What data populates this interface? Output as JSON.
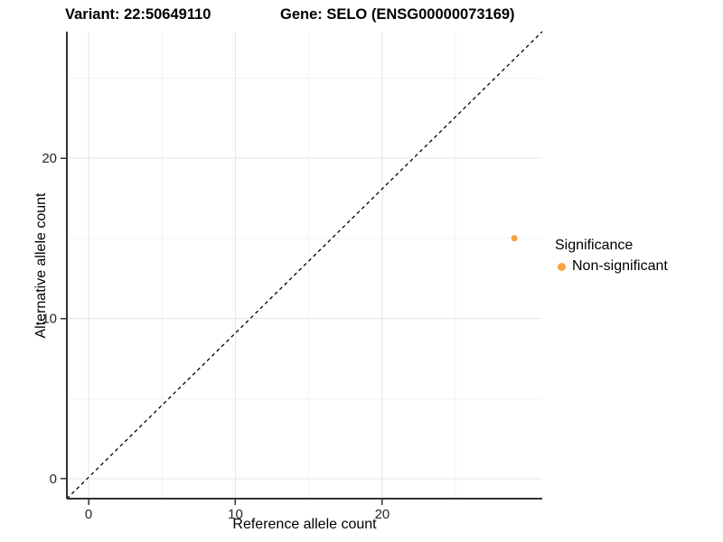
{
  "titles": {
    "left": "Variant: 22:50649110",
    "right": "Gene: SELO (ENSG00000073169)"
  },
  "legend": {
    "title": "Significance",
    "items": [
      {
        "label": "Non-significant",
        "color": "#F9A242"
      }
    ]
  },
  "chart_data": {
    "type": "scatter",
    "xlabel": "Reference allele count",
    "ylabel": "Alternative allele count",
    "x_ticks": [
      0,
      10,
      20
    ],
    "y_ticks": [
      0,
      10,
      20
    ],
    "x_minor_ticks": [
      5,
      15,
      25
    ],
    "y_minor_ticks": [
      5,
      15,
      25
    ],
    "xlim": [
      -1.48,
      30.9
    ],
    "ylim": [
      -1.24,
      27.89
    ],
    "grid": "on",
    "legend_position": "right",
    "points": [
      {
        "x": 29,
        "y": 15,
        "series": "Non-significant",
        "color": "#F9A242"
      }
    ],
    "diagonal_line": {
      "x": [
        -1.48,
        30.9
      ],
      "y": [
        -1.24,
        27.89
      ],
      "style": "dashed",
      "color": "#000000"
    },
    "colors": {
      "major_grid": "#e6e6e6",
      "minor_grid": "#f2f2f2",
      "axis_line": "#333333",
      "tick_label": "#262626"
    }
  }
}
